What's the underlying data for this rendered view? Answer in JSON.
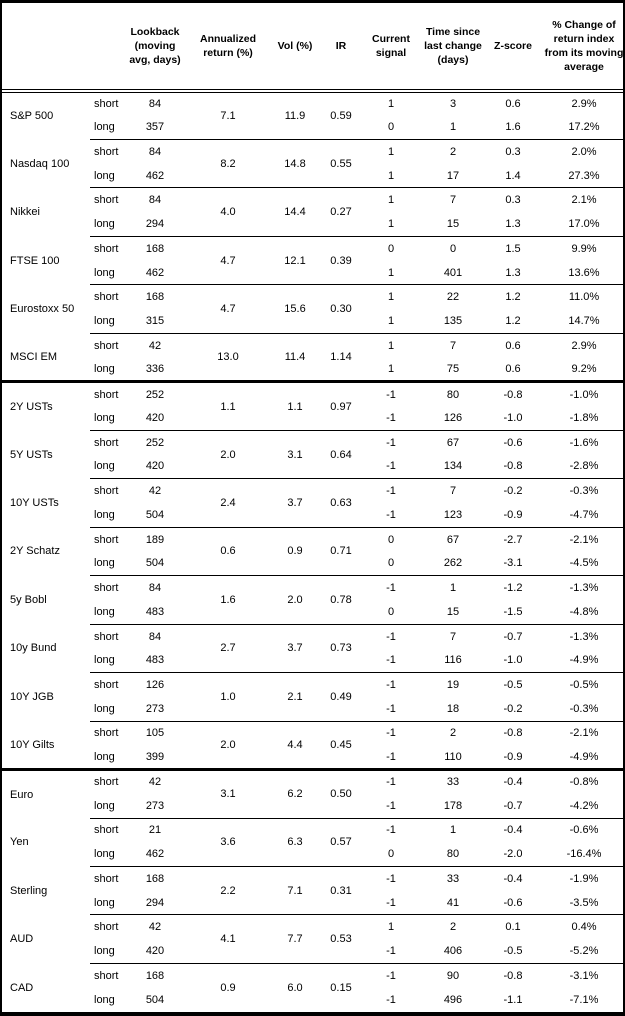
{
  "table": {
    "columns": {
      "asset": "",
      "horizon": "",
      "lookback": "Lookback (moving avg, days)",
      "annualized_return": "Annualized return (%)",
      "vol": "Vol (%)",
      "ir": "IR",
      "current_signal": "Current signal",
      "time_since": "Time since last change (days)",
      "z_score": "Z-score",
      "pct_change": "% Change of return index from its moving average"
    },
    "groups": [
      {
        "assets": [
          {
            "name": "S&P 500",
            "annualized_return": "7.1",
            "vol": "11.9",
            "ir": "0.59",
            "rows": [
              {
                "horizon": "short",
                "lookback": "84",
                "signal": "1",
                "time_since": "3",
                "z_score": "0.6",
                "pct_change": "2.9%"
              },
              {
                "horizon": "long",
                "lookback": "357",
                "signal": "0",
                "time_since": "1",
                "z_score": "1.6",
                "pct_change": "17.2%"
              }
            ]
          },
          {
            "name": "Nasdaq 100",
            "annualized_return": "8.2",
            "vol": "14.8",
            "ir": "0.55",
            "rows": [
              {
                "horizon": "short",
                "lookback": "84",
                "signal": "1",
                "time_since": "2",
                "z_score": "0.3",
                "pct_change": "2.0%"
              },
              {
                "horizon": "long",
                "lookback": "462",
                "signal": "1",
                "time_since": "17",
                "z_score": "1.4",
                "pct_change": "27.3%"
              }
            ]
          },
          {
            "name": "Nikkei",
            "annualized_return": "4.0",
            "vol": "14.4",
            "ir": "0.27",
            "rows": [
              {
                "horizon": "short",
                "lookback": "84",
                "signal": "1",
                "time_since": "7",
                "z_score": "0.3",
                "pct_change": "2.1%"
              },
              {
                "horizon": "long",
                "lookback": "294",
                "signal": "1",
                "time_since": "15",
                "z_score": "1.3",
                "pct_change": "17.0%"
              }
            ]
          },
          {
            "name": "FTSE 100",
            "annualized_return": "4.7",
            "vol": "12.1",
            "ir": "0.39",
            "rows": [
              {
                "horizon": "short",
                "lookback": "168",
                "signal": "0",
                "time_since": "0",
                "z_score": "1.5",
                "pct_change": "9.9%"
              },
              {
                "horizon": "long",
                "lookback": "462",
                "signal": "1",
                "time_since": "401",
                "z_score": "1.3",
                "pct_change": "13.6%"
              }
            ]
          },
          {
            "name": "Eurostoxx 50",
            "annualized_return": "4.7",
            "vol": "15.6",
            "ir": "0.30",
            "rows": [
              {
                "horizon": "short",
                "lookback": "168",
                "signal": "1",
                "time_since": "22",
                "z_score": "1.2",
                "pct_change": "11.0%"
              },
              {
                "horizon": "long",
                "lookback": "315",
                "signal": "1",
                "time_since": "135",
                "z_score": "1.2",
                "pct_change": "14.7%"
              }
            ]
          },
          {
            "name": "MSCI EM",
            "annualized_return": "13.0",
            "vol": "11.4",
            "ir": "1.14",
            "rows": [
              {
                "horizon": "short",
                "lookback": "42",
                "signal": "1",
                "time_since": "7",
                "z_score": "0.6",
                "pct_change": "2.9%"
              },
              {
                "horizon": "long",
                "lookback": "336",
                "signal": "1",
                "time_since": "75",
                "z_score": "0.6",
                "pct_change": "9.2%"
              }
            ]
          }
        ]
      },
      {
        "assets": [
          {
            "name": "2Y USTs",
            "annualized_return": "1.1",
            "vol": "1.1",
            "ir": "0.97",
            "rows": [
              {
                "horizon": "short",
                "lookback": "252",
                "signal": "-1",
                "time_since": "80",
                "z_score": "-0.8",
                "pct_change": "-1.0%"
              },
              {
                "horizon": "long",
                "lookback": "420",
                "signal": "-1",
                "time_since": "126",
                "z_score": "-1.0",
                "pct_change": "-1.8%"
              }
            ]
          },
          {
            "name": "5Y USTs",
            "annualized_return": "2.0",
            "vol": "3.1",
            "ir": "0.64",
            "rows": [
              {
                "horizon": "short",
                "lookback": "252",
                "signal": "-1",
                "time_since": "67",
                "z_score": "-0.6",
                "pct_change": "-1.6%"
              },
              {
                "horizon": "long",
                "lookback": "420",
                "signal": "-1",
                "time_since": "134",
                "z_score": "-0.8",
                "pct_change": "-2.8%"
              }
            ]
          },
          {
            "name": "10Y USTs",
            "annualized_return": "2.4",
            "vol": "3.7",
            "ir": "0.63",
            "rows": [
              {
                "horizon": "short",
                "lookback": "42",
                "signal": "-1",
                "time_since": "7",
                "z_score": "-0.2",
                "pct_change": "-0.3%"
              },
              {
                "horizon": "long",
                "lookback": "504",
                "signal": "-1",
                "time_since": "123",
                "z_score": "-0.9",
                "pct_change": "-4.7%"
              }
            ]
          },
          {
            "name": "2Y Schatz",
            "annualized_return": "0.6",
            "vol": "0.9",
            "ir": "0.71",
            "rows": [
              {
                "horizon": "short",
                "lookback": "189",
                "signal": "0",
                "time_since": "67",
                "z_score": "-2.7",
                "pct_change": "-2.1%"
              },
              {
                "horizon": "long",
                "lookback": "504",
                "signal": "0",
                "time_since": "262",
                "z_score": "-3.1",
                "pct_change": "-4.5%"
              }
            ]
          },
          {
            "name": "5y Bobl",
            "annualized_return": "1.6",
            "vol": "2.0",
            "ir": "0.78",
            "rows": [
              {
                "horizon": "short",
                "lookback": "84",
                "signal": "-1",
                "time_since": "1",
                "z_score": "-1.2",
                "pct_change": "-1.3%"
              },
              {
                "horizon": "long",
                "lookback": "483",
                "signal": "0",
                "time_since": "15",
                "z_score": "-1.5",
                "pct_change": "-4.8%"
              }
            ]
          },
          {
            "name": "10y Bund",
            "annualized_return": "2.7",
            "vol": "3.7",
            "ir": "0.73",
            "rows": [
              {
                "horizon": "short",
                "lookback": "84",
                "signal": "-1",
                "time_since": "7",
                "z_score": "-0.7",
                "pct_change": "-1.3%"
              },
              {
                "horizon": "long",
                "lookback": "483",
                "signal": "-1",
                "time_since": "116",
                "z_score": "-1.0",
                "pct_change": "-4.9%"
              }
            ]
          },
          {
            "name": "10Y JGB",
            "annualized_return": "1.0",
            "vol": "2.1",
            "ir": "0.49",
            "rows": [
              {
                "horizon": "short",
                "lookback": "126",
                "signal": "-1",
                "time_since": "19",
                "z_score": "-0.5",
                "pct_change": "-0.5%"
              },
              {
                "horizon": "long",
                "lookback": "273",
                "signal": "-1",
                "time_since": "18",
                "z_score": "-0.2",
                "pct_change": "-0.3%"
              }
            ]
          },
          {
            "name": "10Y Gilts",
            "annualized_return": "2.0",
            "vol": "4.4",
            "ir": "0.45",
            "rows": [
              {
                "horizon": "short",
                "lookback": "105",
                "signal": "-1",
                "time_since": "2",
                "z_score": "-0.8",
                "pct_change": "-2.1%"
              },
              {
                "horizon": "long",
                "lookback": "399",
                "signal": "-1",
                "time_since": "110",
                "z_score": "-0.9",
                "pct_change": "-4.9%"
              }
            ]
          }
        ]
      },
      {
        "assets": [
          {
            "name": "Euro",
            "annualized_return": "3.1",
            "vol": "6.2",
            "ir": "0.50",
            "rows": [
              {
                "horizon": "short",
                "lookback": "42",
                "signal": "-1",
                "time_since": "33",
                "z_score": "-0.4",
                "pct_change": "-0.8%"
              },
              {
                "horizon": "long",
                "lookback": "273",
                "signal": "-1",
                "time_since": "178",
                "z_score": "-0.7",
                "pct_change": "-4.2%"
              }
            ]
          },
          {
            "name": "Yen",
            "annualized_return": "3.6",
            "vol": "6.3",
            "ir": "0.57",
            "rows": [
              {
                "horizon": "short",
                "lookback": "21",
                "signal": "-1",
                "time_since": "1",
                "z_score": "-0.4",
                "pct_change": "-0.6%"
              },
              {
                "horizon": "long",
                "lookback": "462",
                "signal": "0",
                "time_since": "80",
                "z_score": "-2.0",
                "pct_change": "-16.4%"
              }
            ]
          },
          {
            "name": "Sterling",
            "annualized_return": "2.2",
            "vol": "7.1",
            "ir": "0.31",
            "rows": [
              {
                "horizon": "short",
                "lookback": "168",
                "signal": "-1",
                "time_since": "33",
                "z_score": "-0.4",
                "pct_change": "-1.9%"
              },
              {
                "horizon": "long",
                "lookback": "294",
                "signal": "-1",
                "time_since": "41",
                "z_score": "-0.6",
                "pct_change": "-3.5%"
              }
            ]
          },
          {
            "name": "AUD",
            "annualized_return": "4.1",
            "vol": "7.7",
            "ir": "0.53",
            "rows": [
              {
                "horizon": "short",
                "lookback": "42",
                "signal": "1",
                "time_since": "2",
                "z_score": "0.1",
                "pct_change": "0.4%"
              },
              {
                "horizon": "long",
                "lookback": "420",
                "signal": "-1",
                "time_since": "406",
                "z_score": "-0.5",
                "pct_change": "-5.2%"
              }
            ]
          },
          {
            "name": "CAD",
            "annualized_return": "0.9",
            "vol": "6.0",
            "ir": "0.15",
            "rows": [
              {
                "horizon": "short",
                "lookback": "168",
                "signal": "-1",
                "time_since": "90",
                "z_score": "-0.8",
                "pct_change": "-3.1%"
              },
              {
                "horizon": "long",
                "lookback": "504",
                "signal": "-1",
                "time_since": "496",
                "z_score": "-1.1",
                "pct_change": "-7.1%"
              }
            ]
          }
        ]
      }
    ]
  },
  "colors": {
    "border": "#000000",
    "background": "#ffffff",
    "text": "#000000"
  }
}
